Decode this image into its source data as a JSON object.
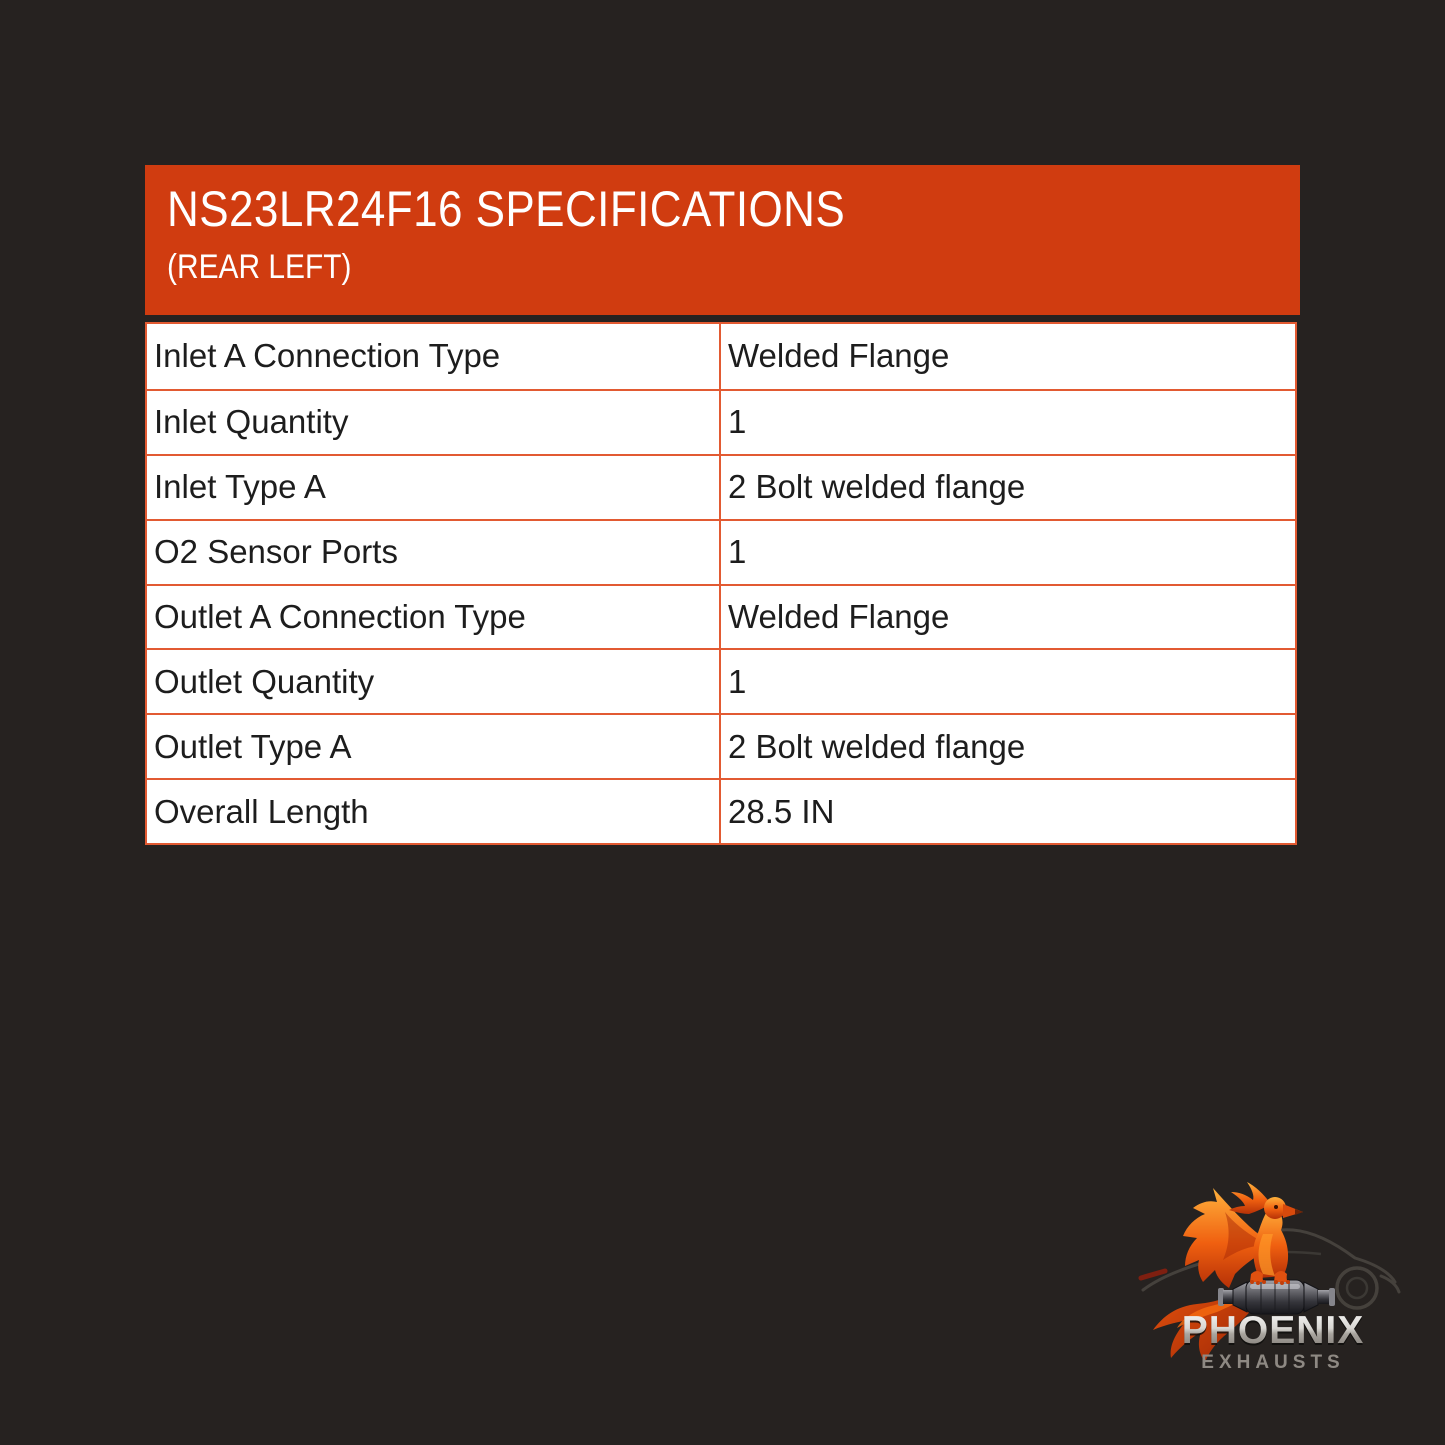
{
  "page": {
    "background_color": "#262220"
  },
  "header": {
    "title": "NS23LR24F16 SPECIFICATIONS",
    "subtitle": "(REAR LEFT)",
    "background_color": "#d03c10",
    "text_color": "#ffffff"
  },
  "table": {
    "border_color": "#e25a32",
    "rows": [
      {
        "label": "Inlet A Connection Type",
        "value": "Welded Flange"
      },
      {
        "label": "Inlet Quantity",
        "value": "1"
      },
      {
        "label": "Inlet Type A",
        "value": "2 Bolt welded flange"
      },
      {
        "label": "O2 Sensor Ports",
        "value": "1"
      },
      {
        "label": "Outlet A Connection Type",
        "value": "Welded Flange"
      },
      {
        "label": "Outlet Quantity",
        "value": "1"
      },
      {
        "label": "Outlet Type A",
        "value": "2 Bolt welded flange"
      },
      {
        "label": "Overall Length",
        "value": "28.5 IN"
      }
    ]
  },
  "logo": {
    "brand": "PHOENIX",
    "tagline": "EXHAUSTS",
    "accent_color": "#e8540e",
    "metal_color": "#b9b5b0",
    "icons": {
      "bird": "phoenix-bird-icon",
      "car": "car-silhouette-icon",
      "muffler": "muffler-icon"
    }
  }
}
